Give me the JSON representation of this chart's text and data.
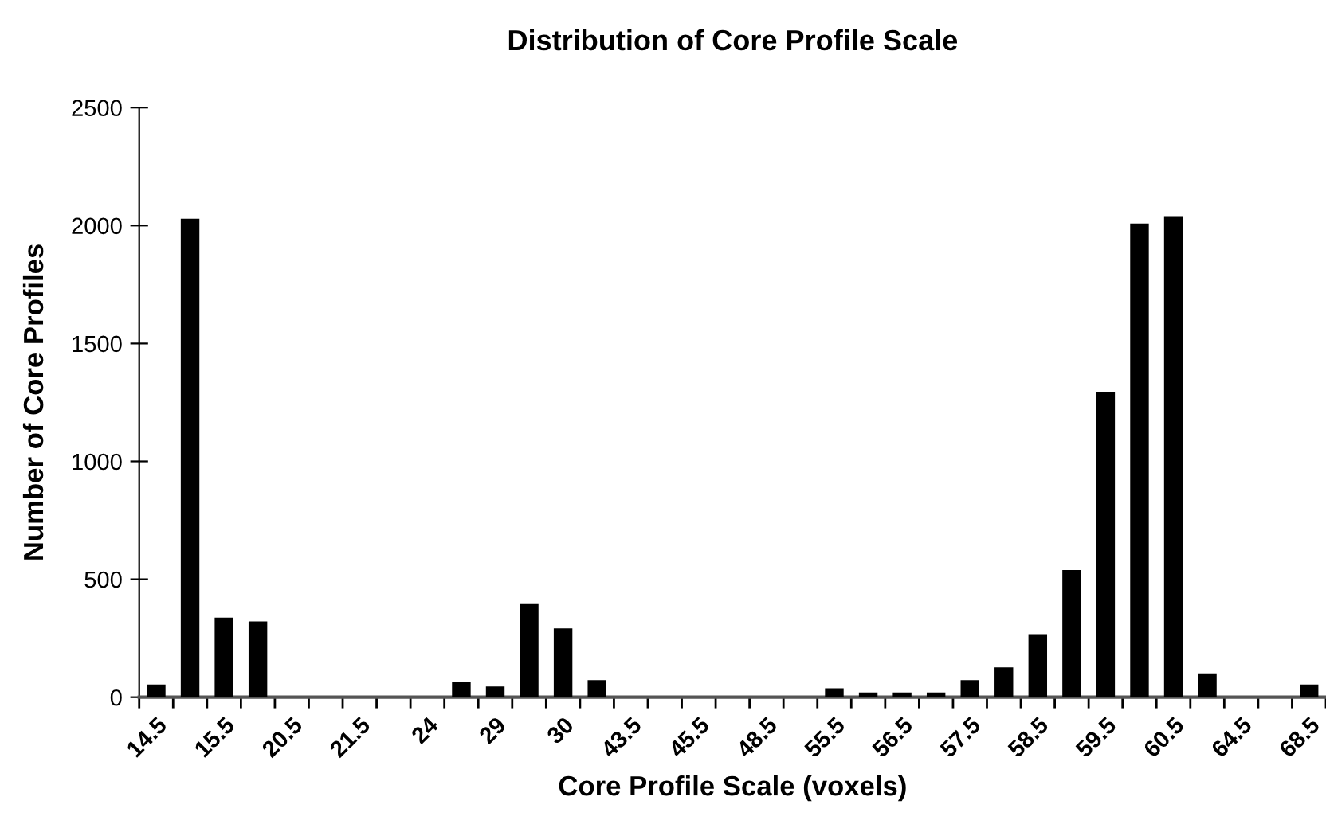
{
  "chart_data": {
    "type": "bar",
    "title": "Distribution of Core Profile Scale",
    "xlabel": "Core Profile Scale (voxels)",
    "ylabel": "Number of Core Profiles",
    "categories": [
      "14.5",
      null,
      "15.5",
      null,
      "20.5",
      null,
      "21.5",
      null,
      "24",
      null,
      "29",
      null,
      "30",
      null,
      "43.5",
      null,
      "45.5",
      null,
      "48.5",
      null,
      "55.5",
      null,
      "56.5",
      null,
      "57.5",
      null,
      "58.5",
      null,
      "59.5",
      null,
      "60.5",
      null,
      "64.5",
      null,
      "68.5"
    ],
    "values": [
      54,
      2029,
      337,
      321,
      0,
      0,
      0,
      0,
      0,
      65,
      45,
      395,
      292,
      72,
      0,
      0,
      0,
      0,
      0,
      0,
      38,
      20,
      20,
      20,
      72,
      126,
      267,
      539,
      1295,
      2009,
      2040,
      101,
      0,
      0,
      54
    ],
    "color": "#000000",
    "ylim": [
      0,
      2500
    ],
    "yticks": [
      0,
      500,
      1000,
      1500,
      2000,
      2500
    ],
    "grid": false,
    "legend": false
  }
}
